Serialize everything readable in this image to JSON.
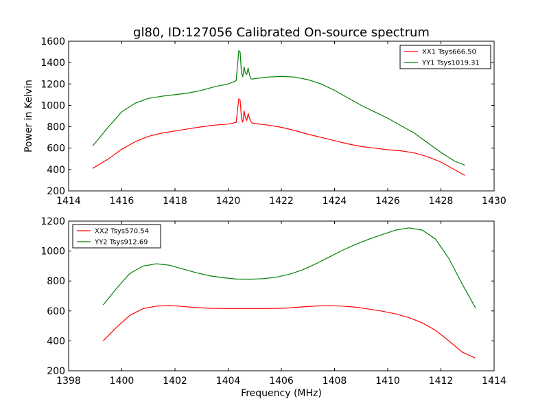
{
  "figure": {
    "title": "gl80, ID:127056 Calibrated On-source spectrum"
  },
  "chart_data": [
    {
      "type": "line",
      "title": "gl80, ID:127056 Calibrated On-source spectrum",
      "ylabel": "Power in Kelvin",
      "xlabel": "",
      "xlim": [
        1414,
        1430
      ],
      "ylim": [
        200,
        1600
      ],
      "xticks": [
        1414,
        1416,
        1418,
        1420,
        1422,
        1424,
        1426,
        1428,
        1430
      ],
      "yticks": [
        200,
        400,
        600,
        800,
        1000,
        1200,
        1400,
        1600
      ],
      "legend": "top-right",
      "grid": false,
      "series": [
        {
          "name": "XX1 Tsys666.50",
          "color": "#ff0000",
          "x": [
            1414.9,
            1415.5,
            1416.0,
            1416.5,
            1417.0,
            1417.5,
            1418.0,
            1418.5,
            1419.0,
            1419.5,
            1420.0,
            1420.3,
            1420.4,
            1420.45,
            1420.5,
            1420.55,
            1420.6,
            1420.65,
            1420.7,
            1420.75,
            1420.8,
            1420.85,
            1420.9,
            1421.0,
            1421.5,
            1422.0,
            1422.5,
            1423.0,
            1423.5,
            1424.0,
            1424.5,
            1425.0,
            1425.5,
            1426.0,
            1426.5,
            1427.0,
            1427.5,
            1428.0,
            1428.5,
            1428.9
          ],
          "values": [
            410,
            500,
            590,
            660,
            710,
            740,
            760,
            780,
            800,
            815,
            825,
            840,
            1060,
            1050,
            880,
            840,
            950,
            880,
            860,
            920,
            880,
            850,
            835,
            830,
            815,
            795,
            765,
            730,
            700,
            670,
            640,
            615,
            600,
            585,
            575,
            555,
            520,
            470,
            400,
            345
          ]
        },
        {
          "name": "YY1 Tsys1019.31",
          "color": "#008000",
          "x": [
            1414.9,
            1415.5,
            1416.0,
            1416.5,
            1417.0,
            1417.5,
            1418.0,
            1418.5,
            1419.0,
            1419.5,
            1420.0,
            1420.3,
            1420.4,
            1420.45,
            1420.5,
            1420.55,
            1420.6,
            1420.65,
            1420.7,
            1420.75,
            1420.8,
            1420.85,
            1420.9,
            1421.0,
            1421.5,
            1422.0,
            1422.5,
            1423.0,
            1423.5,
            1424.0,
            1424.5,
            1425.0,
            1425.5,
            1426.0,
            1426.5,
            1427.0,
            1427.5,
            1428.0,
            1428.5,
            1428.9
          ],
          "values": [
            620,
            800,
            940,
            1020,
            1065,
            1085,
            1100,
            1115,
            1140,
            1175,
            1200,
            1230,
            1510,
            1500,
            1300,
            1270,
            1360,
            1300,
            1290,
            1350,
            1290,
            1250,
            1245,
            1250,
            1265,
            1270,
            1265,
            1240,
            1200,
            1140,
            1070,
            1000,
            940,
            880,
            810,
            740,
            650,
            560,
            480,
            440
          ]
        }
      ]
    },
    {
      "type": "line",
      "title": "",
      "ylabel": "",
      "xlabel": "Frequency (MHz)",
      "xlim": [
        1398,
        1414
      ],
      "ylim": [
        200,
        1200
      ],
      "xticks": [
        1398,
        1400,
        1402,
        1404,
        1406,
        1408,
        1410,
        1412,
        1414
      ],
      "yticks": [
        200,
        400,
        600,
        800,
        1000,
        1200
      ],
      "legend": "top-left",
      "grid": false,
      "series": [
        {
          "name": "XX2 Tsys570.54",
          "color": "#ff0000",
          "x": [
            1399.3,
            1399.8,
            1400.3,
            1400.8,
            1401.3,
            1401.8,
            1402.3,
            1402.8,
            1403.3,
            1403.8,
            1404.3,
            1404.8,
            1405.3,
            1405.8,
            1406.3,
            1406.8,
            1407.3,
            1407.8,
            1408.3,
            1408.8,
            1409.3,
            1409.8,
            1410.3,
            1410.8,
            1411.3,
            1411.8,
            1412.3,
            1412.8,
            1413.3
          ],
          "values": [
            400,
            490,
            570,
            615,
            632,
            636,
            630,
            622,
            618,
            616,
            616,
            616,
            616,
            617,
            620,
            627,
            633,
            635,
            632,
            625,
            612,
            598,
            580,
            555,
            520,
            470,
            400,
            325,
            285
          ]
        },
        {
          "name": "YY2 Tsys912.69",
          "color": "#008000",
          "x": [
            1399.3,
            1399.8,
            1400.3,
            1400.8,
            1401.3,
            1401.8,
            1402.3,
            1402.8,
            1403.3,
            1403.8,
            1404.3,
            1404.8,
            1405.3,
            1405.8,
            1406.3,
            1406.8,
            1407.3,
            1407.8,
            1408.3,
            1408.8,
            1409.3,
            1409.8,
            1410.3,
            1410.8,
            1411.3,
            1411.8,
            1412.3,
            1412.8,
            1413.3
          ],
          "values": [
            640,
            750,
            850,
            900,
            915,
            905,
            880,
            855,
            835,
            822,
            813,
            812,
            815,
            825,
            845,
            875,
            915,
            960,
            1005,
            1045,
            1080,
            1110,
            1140,
            1155,
            1140,
            1080,
            950,
            780,
            620
          ]
        }
      ]
    }
  ]
}
